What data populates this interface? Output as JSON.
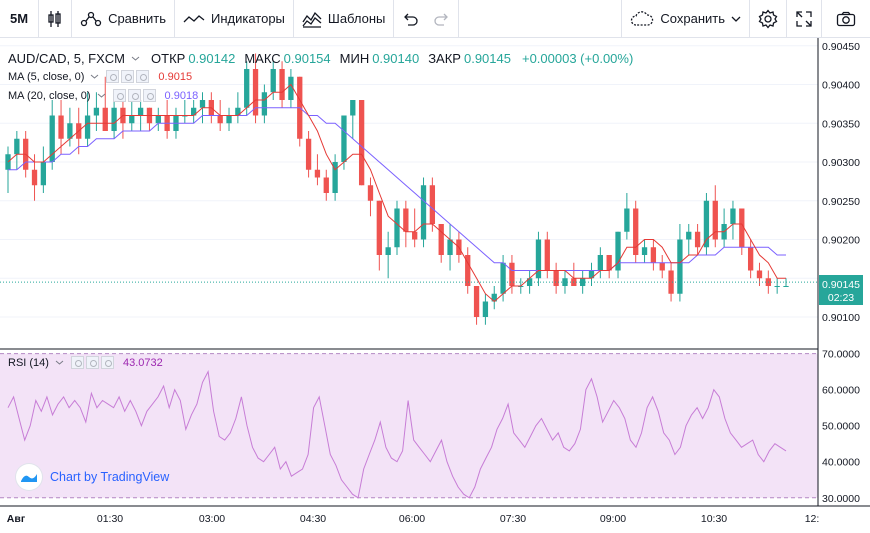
{
  "toolbar": {
    "interval": "5M",
    "compare_label": "Сравнить",
    "indicators_label": "Индикаторы",
    "templates_label": "Шаблоны",
    "save_label": "Сохранить"
  },
  "symbol_legend": {
    "symbol": "AUD/CAD, 5, FXCM",
    "open_key": "ОТКР",
    "open": "0.90142",
    "high_key": "МАКС",
    "high": "0.90154",
    "low_key": "МИН",
    "low": "0.90140",
    "close_key": "ЗАКР",
    "close": "0.90145",
    "change": "+0.00003 (+0.00%)"
  },
  "ma5_legend": {
    "name": "MA (5, close, 0)",
    "value": "0.9015"
  },
  "ma20_legend": {
    "name": "MA (20, close, 0)",
    "value": "0.9018"
  },
  "rsi_legend": {
    "name": "RSI (14)",
    "value": "43.0732"
  },
  "watermark": "Chart by TradingView",
  "colors": {
    "up": "#26a69a",
    "down": "#ef5350",
    "ma5": "#e53935",
    "ma20": "#7b61ff",
    "rsi": "#c77dd6",
    "rsi_band": "#f3e3f7"
  },
  "chart_data": [
    {
      "type": "candlestick",
      "title": "AUD/CAD, 5, FXCM",
      "price_ticks": [
        "0.90450",
        "0.90400",
        "0.90350",
        "0.90300",
        "0.90250",
        "0.90200",
        "0.90150",
        "0.90100"
      ],
      "ylim": [
        0.9006,
        0.9046
      ],
      "last_price": "0.90145",
      "countdown": "02:23",
      "time_ticks": [
        "Авг",
        "01:30",
        "03:00",
        "04:30",
        "06:00",
        "07:30",
        "09:00",
        "10:30",
        "12:"
      ],
      "candles": [
        [
          0.9029,
          0.9032,
          0.9026,
          0.9031
        ],
        [
          0.9031,
          0.9034,
          0.9029,
          0.9033
        ],
        [
          0.9033,
          0.9034,
          0.9028,
          0.9029
        ],
        [
          0.9029,
          0.9031,
          0.9025,
          0.9027
        ],
        [
          0.9027,
          0.9032,
          0.9026,
          0.903
        ],
        [
          0.903,
          0.9038,
          0.9029,
          0.9036
        ],
        [
          0.9036,
          0.9038,
          0.9031,
          0.9033
        ],
        [
          0.9033,
          0.9037,
          0.9032,
          0.9035
        ],
        [
          0.9035,
          0.9037,
          0.9031,
          0.9033
        ],
        [
          0.9033,
          0.9039,
          0.9032,
          0.9036
        ],
        [
          0.9036,
          0.9039,
          0.9034,
          0.9037
        ],
        [
          0.9037,
          0.9041,
          0.9034,
          0.9034
        ],
        [
          0.9034,
          0.9038,
          0.9033,
          0.9037
        ],
        [
          0.9037,
          0.9038,
          0.9033,
          0.9035
        ],
        [
          0.9035,
          0.9038,
          0.9034,
          0.9036
        ],
        [
          0.9036,
          0.9038,
          0.9034,
          0.9037
        ],
        [
          0.9037,
          0.9037,
          0.9034,
          0.9035
        ],
        [
          0.9035,
          0.9037,
          0.9034,
          0.9036
        ],
        [
          0.9036,
          0.9038,
          0.9033,
          0.9034
        ],
        [
          0.9034,
          0.9037,
          0.9033,
          0.9036
        ],
        [
          0.9036,
          0.9038,
          0.9035,
          0.9036
        ],
        [
          0.9036,
          0.9038,
          0.9035,
          0.9037
        ],
        [
          0.9037,
          0.9039,
          0.9035,
          0.9038
        ],
        [
          0.9038,
          0.9039,
          0.9035,
          0.9036
        ],
        [
          0.9036,
          0.9038,
          0.9034,
          0.9035
        ],
        [
          0.9035,
          0.9037,
          0.9034,
          0.9036
        ],
        [
          0.9036,
          0.9039,
          0.9035,
          0.9037
        ],
        [
          0.9037,
          0.9043,
          0.9036,
          0.9042
        ],
        [
          0.9042,
          0.9044,
          0.9035,
          0.9036
        ],
        [
          0.9036,
          0.904,
          0.9035,
          0.9039
        ],
        [
          0.9039,
          0.9043,
          0.9038,
          0.9042
        ],
        [
          0.9042,
          0.9043,
          0.9037,
          0.9038
        ],
        [
          0.9038,
          0.9042,
          0.9037,
          0.9041
        ],
        [
          0.9041,
          0.9041,
          0.9032,
          0.9033
        ],
        [
          0.9033,
          0.9034,
          0.9028,
          0.9029
        ],
        [
          0.9029,
          0.9031,
          0.9027,
          0.9028
        ],
        [
          0.9028,
          0.9029,
          0.9025,
          0.9026
        ],
        [
          0.9026,
          0.9031,
          0.9025,
          0.903
        ],
        [
          0.903,
          0.9036,
          0.9029,
          0.9036
        ],
        [
          0.9036,
          0.9038,
          0.9033,
          0.9038
        ],
        [
          0.9038,
          0.9038,
          0.9027,
          0.9027
        ],
        [
          0.9027,
          0.9028,
          0.9023,
          0.9025
        ],
        [
          0.9025,
          0.9025,
          0.9016,
          0.9018
        ],
        [
          0.9018,
          0.9021,
          0.9015,
          0.9019
        ],
        [
          0.9019,
          0.9025,
          0.9018,
          0.9024
        ],
        [
          0.9024,
          0.9025,
          0.9019,
          0.9021
        ],
        [
          0.9021,
          0.9024,
          0.9019,
          0.902
        ],
        [
          0.902,
          0.9028,
          0.9019,
          0.9027
        ],
        [
          0.9027,
          0.9028,
          0.9021,
          0.9022
        ],
        [
          0.9022,
          0.9022,
          0.9017,
          0.9018
        ],
        [
          0.9018,
          0.9022,
          0.9016,
          0.902
        ],
        [
          0.902,
          0.9021,
          0.9017,
          0.9018
        ],
        [
          0.9018,
          0.9019,
          0.9013,
          0.9014
        ],
        [
          0.9014,
          0.9014,
          0.9009,
          0.901
        ],
        [
          0.901,
          0.9013,
          0.9009,
          0.9012
        ],
        [
          0.9012,
          0.9014,
          0.9011,
          0.9013
        ],
        [
          0.9013,
          0.9018,
          0.9012,
          0.9017
        ],
        [
          0.9017,
          0.9018,
          0.9013,
          0.9014
        ],
        [
          0.9014,
          0.9015,
          0.9013,
          0.9014
        ],
        [
          0.9014,
          0.9016,
          0.9013,
          0.9015
        ],
        [
          0.9015,
          0.9021,
          0.9014,
          0.902
        ],
        [
          0.902,
          0.9021,
          0.9015,
          0.9016
        ],
        [
          0.9016,
          0.9017,
          0.9013,
          0.9014
        ],
        [
          0.9014,
          0.9016,
          0.9013,
          0.9015
        ],
        [
          0.9015,
          0.9017,
          0.9014,
          0.9014
        ],
        [
          0.9014,
          0.9016,
          0.9013,
          0.9015
        ],
        [
          0.9015,
          0.9017,
          0.9014,
          0.9016
        ],
        [
          0.9016,
          0.9019,
          0.9015,
          0.9018
        ],
        [
          0.9018,
          0.9018,
          0.9015,
          0.9016
        ],
        [
          0.9016,
          0.9021,
          0.9015,
          0.9021
        ],
        [
          0.9021,
          0.9026,
          0.902,
          0.9024
        ],
        [
          0.9024,
          0.9025,
          0.9017,
          0.9018
        ],
        [
          0.9018,
          0.902,
          0.9017,
          0.9019
        ],
        [
          0.9019,
          0.902,
          0.9016,
          0.9017
        ],
        [
          0.9017,
          0.9018,
          0.9015,
          0.9016
        ],
        [
          0.9016,
          0.9017,
          0.9012,
          0.9013
        ],
        [
          0.9013,
          0.9022,
          0.9012,
          0.902
        ],
        [
          0.902,
          0.9022,
          0.9018,
          0.9021
        ],
        [
          0.9021,
          0.9022,
          0.9018,
          0.9019
        ],
        [
          0.9019,
          0.9026,
          0.9018,
          0.9025
        ],
        [
          0.9025,
          0.9027,
          0.9019,
          0.902
        ],
        [
          0.902,
          0.9024,
          0.9019,
          0.9022
        ],
        [
          0.9022,
          0.9025,
          0.902,
          0.9024
        ],
        [
          0.9024,
          0.9024,
          0.9018,
          0.9019
        ],
        [
          0.9019,
          0.902,
          0.9015,
          0.9016
        ],
        [
          0.9016,
          0.9017,
          0.9014,
          0.9015
        ],
        [
          0.9015,
          0.9016,
          0.9013,
          0.9014
        ],
        [
          0.9014,
          0.9015,
          0.9013,
          0.9014
        ],
        [
          0.9014,
          0.9015,
          0.9014,
          0.9014
        ]
      ],
      "ma5": [
        0.903,
        0.9031,
        0.9031,
        0.903,
        0.903,
        0.9031,
        0.9032,
        0.9033,
        0.9034,
        0.9035,
        0.9035,
        0.9035,
        0.9035,
        0.9036,
        0.9036,
        0.9036,
        0.9036,
        0.9036,
        0.9036,
        0.9036,
        0.9036,
        0.9036,
        0.9037,
        0.9037,
        0.9036,
        0.9036,
        0.9036,
        0.9037,
        0.9038,
        0.9038,
        0.9039,
        0.9039,
        0.904,
        0.9038,
        0.9036,
        0.9034,
        0.9031,
        0.9029,
        0.903,
        0.9031,
        0.9031,
        0.9029,
        0.9026,
        0.9023,
        0.9022,
        0.9021,
        0.9021,
        0.9022,
        0.9022,
        0.9021,
        0.902,
        0.9019,
        0.9017,
        0.9015,
        0.9013,
        0.9012,
        0.9013,
        0.9014,
        0.9014,
        0.9015,
        0.9016,
        0.9016,
        0.9016,
        0.9016,
        0.9015,
        0.9015,
        0.9015,
        0.9016,
        0.9016,
        0.9017,
        0.9019,
        0.9019,
        0.902,
        0.902,
        0.9019,
        0.9017,
        0.9017,
        0.9018,
        0.9018,
        0.902,
        0.9021,
        0.9021,
        0.9022,
        0.9022,
        0.902,
        0.9018,
        0.9017,
        0.9015,
        0.9015
      ],
      "ma20": [
        0.9029,
        0.9029,
        0.903,
        0.903,
        0.903,
        0.903,
        0.9031,
        0.9031,
        0.9032,
        0.9032,
        0.9033,
        0.9033,
        0.9033,
        0.9034,
        0.9034,
        0.9034,
        0.9034,
        0.9035,
        0.9035,
        0.9035,
        0.9035,
        0.9035,
        0.9036,
        0.9036,
        0.9036,
        0.9036,
        0.9036,
        0.9036,
        0.9037,
        0.9037,
        0.9037,
        0.9037,
        0.9037,
        0.9037,
        0.9036,
        0.9036,
        0.9035,
        0.9035,
        0.9034,
        0.9033,
        0.9032,
        0.9031,
        0.903,
        0.9029,
        0.9028,
        0.9027,
        0.9026,
        0.9025,
        0.9024,
        0.9023,
        0.9022,
        0.9021,
        0.902,
        0.9019,
        0.9018,
        0.9017,
        0.9017,
        0.9016,
        0.9016,
        0.9016,
        0.9016,
        0.9016,
        0.9016,
        0.9016,
        0.9016,
        0.9016,
        0.9016,
        0.9016,
        0.9016,
        0.9017,
        0.9017,
        0.9017,
        0.9017,
        0.9017,
        0.9017,
        0.9017,
        0.9017,
        0.9017,
        0.9018,
        0.9018,
        0.9018,
        0.9019,
        0.9019,
        0.9019,
        0.9019,
        0.9019,
        0.9019,
        0.9018,
        0.9018
      ]
    },
    {
      "type": "line",
      "title": "RSI (14)",
      "ylim": [
        28,
        71
      ],
      "y_ticks": [
        "70.0000",
        "60.0000",
        "50.0000",
        "40.0000",
        "30.0000"
      ],
      "band": [
        30,
        70
      ],
      "values": [
        55,
        58,
        52,
        46,
        50,
        57,
        54,
        58,
        53,
        56,
        58,
        55,
        57,
        55,
        51,
        59,
        55,
        57,
        56,
        55,
        58,
        54,
        57,
        54,
        50,
        54,
        56,
        58,
        61,
        55,
        60,
        57,
        49,
        53,
        56,
        62,
        65,
        54,
        47,
        46,
        48,
        52,
        58,
        50,
        44,
        41,
        40,
        42,
        44,
        38,
        40,
        36,
        37,
        38,
        42,
        55,
        58,
        50,
        42,
        39,
        35,
        33,
        31,
        30,
        38,
        42,
        46,
        51,
        44,
        41,
        40,
        43,
        57,
        46,
        44,
        42,
        40,
        43,
        46,
        40,
        36,
        33,
        31,
        30,
        33,
        38,
        41,
        44,
        49,
        52,
        56,
        48,
        46,
        44,
        47,
        50,
        52,
        49,
        46,
        48,
        44,
        43,
        45,
        49,
        60,
        63,
        58,
        51,
        54,
        57,
        55,
        52,
        46,
        44,
        48,
        55,
        58,
        54,
        48,
        46,
        42,
        44,
        50,
        53,
        55,
        52,
        55,
        60,
        58,
        52,
        48,
        46,
        44,
        45,
        46,
        42,
        40,
        43,
        45,
        44,
        43
      ]
    }
  ]
}
